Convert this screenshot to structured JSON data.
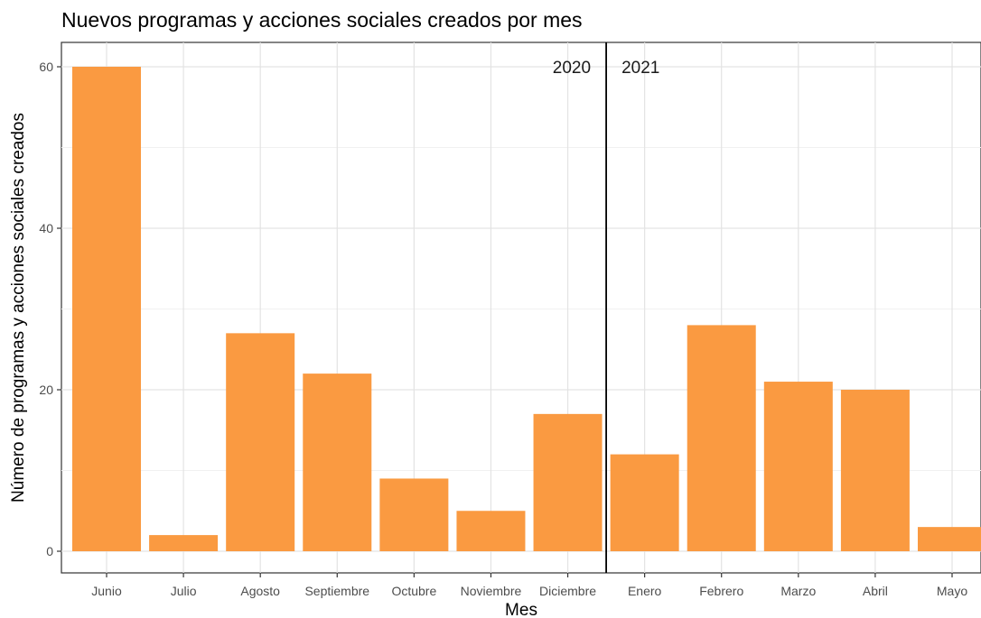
{
  "chart_data": {
    "type": "bar",
    "title": "Nuevos programas y acciones sociales creados por mes",
    "xlabel": "Mes",
    "ylabel": "Número de programas y acciones sociales creados",
    "categories": [
      "Junio",
      "Julio",
      "Agosto",
      "Septiembre",
      "Octubre",
      "Noviembre",
      "Diciembre",
      "Enero",
      "Febrero",
      "Marzo",
      "Abril",
      "Mayo"
    ],
    "values": [
      60,
      2,
      27,
      22,
      9,
      5,
      17,
      12,
      28,
      21,
      20,
      3
    ],
    "ylim": [
      0,
      63
    ],
    "yticks": [
      0,
      20,
      40,
      60
    ],
    "grid": true,
    "bar_color": "#FA9A41",
    "annotations": [
      {
        "text": "2020",
        "position": "left-of-divider"
      },
      {
        "text": "2021",
        "position": "right-of-divider"
      }
    ],
    "divider_between": [
      "Diciembre",
      "Enero"
    ]
  }
}
